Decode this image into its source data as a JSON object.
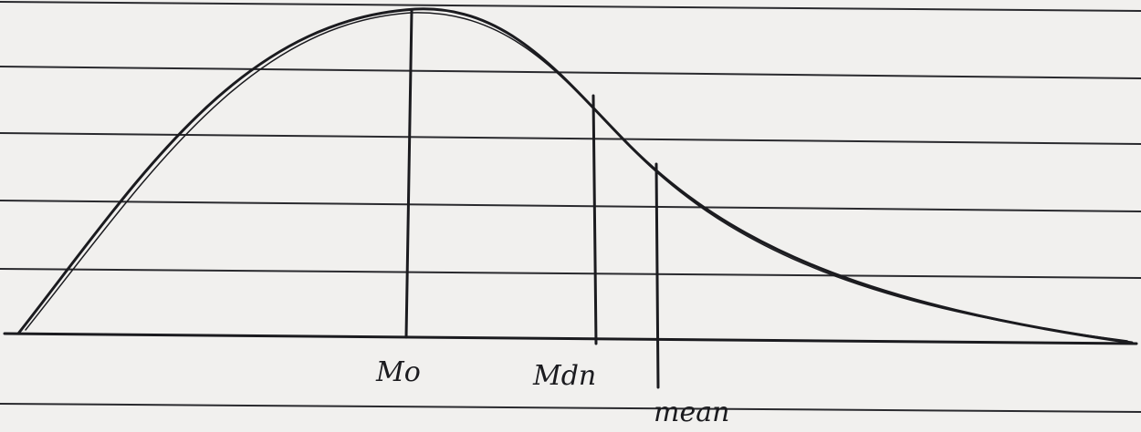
{
  "labels": {
    "mode": "Mo",
    "median": "Mdn",
    "mean": "mean"
  }
}
